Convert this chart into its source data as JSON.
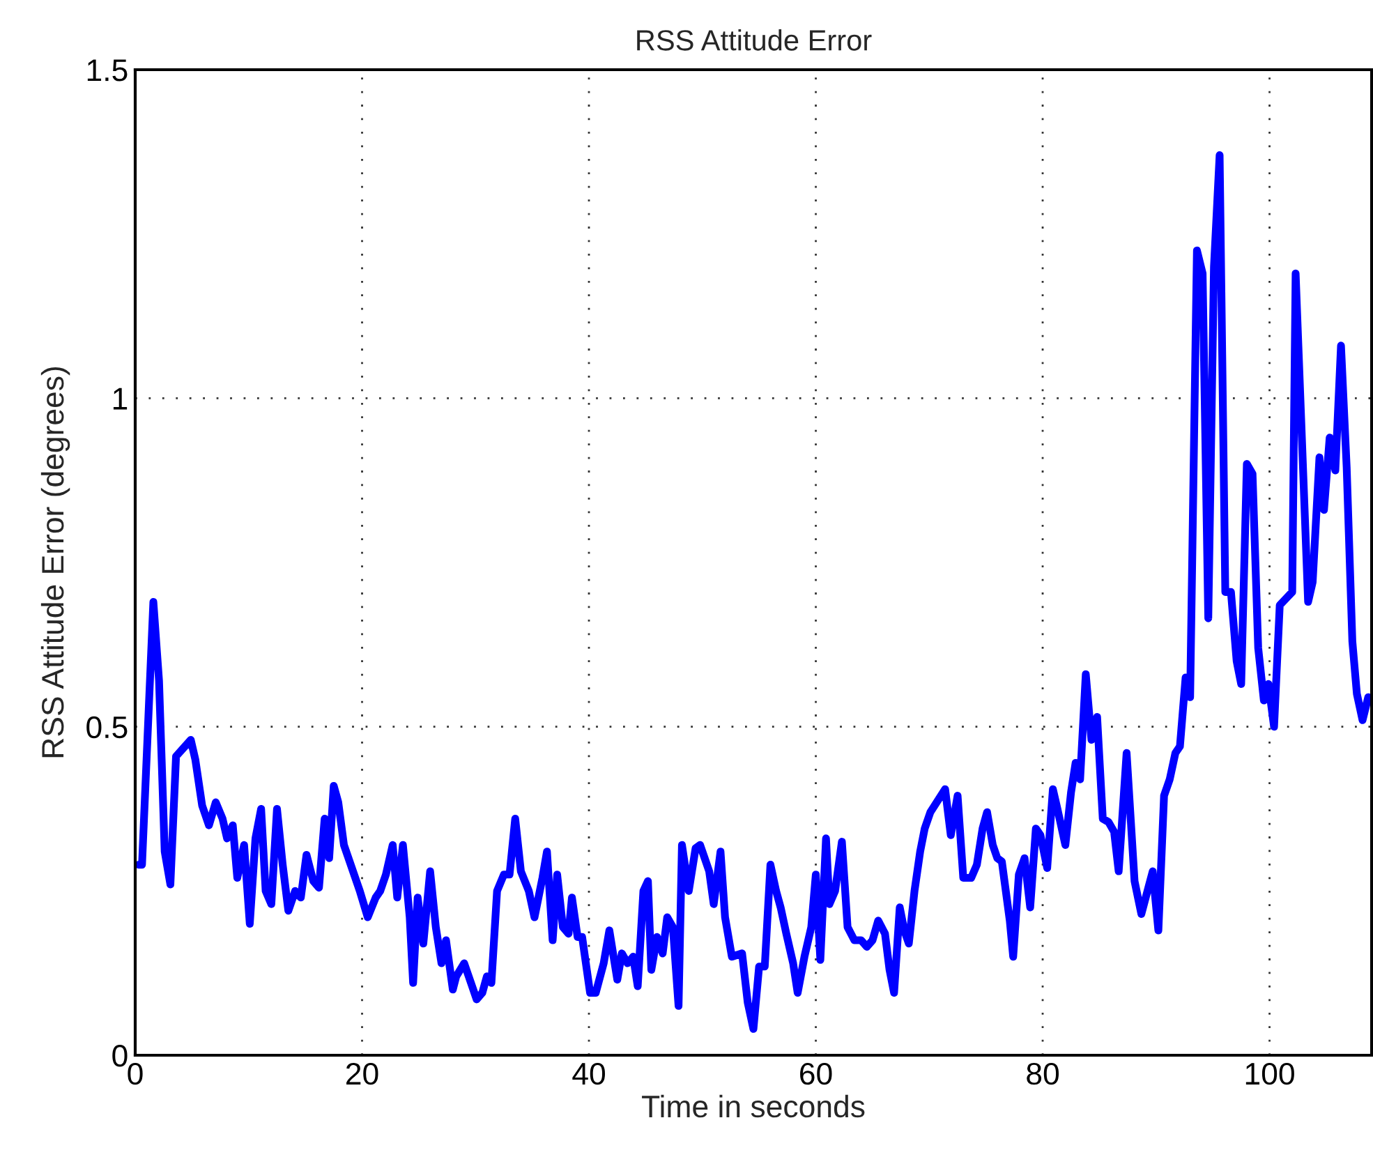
{
  "chart_data": {
    "type": "line",
    "title": "RSS Attitude Error",
    "xlabel": "Time in seconds",
    "ylabel": "RSS Attitude Error (degrees)",
    "xlim": [
      0,
      109
    ],
    "xticks": [
      0,
      20,
      40,
      60,
      80,
      100
    ],
    "ylim": [
      0,
      1.5
    ],
    "yticks": [
      0,
      0.5,
      1,
      1.5
    ],
    "grid": true,
    "line_style": "solid",
    "series": [
      {
        "color": "#0000ff",
        "x": [
          0.3,
          0.6,
          1.6,
          2.1,
          2.6,
          3.1,
          3.6,
          4.9,
          5.3,
          5.9,
          6.5,
          7.1,
          7.7,
          8.1,
          8.6,
          9.0,
          9.6,
          10.1,
          10.6,
          11.1,
          11.5,
          12.0,
          12.5,
          13.0,
          13.5,
          14.1,
          14.6,
          15.1,
          15.7,
          16.2,
          16.7,
          17.1,
          17.5,
          17.9,
          18.4,
          19.0,
          19.8,
          20.5,
          21.2,
          21.6,
          22.1,
          22.7,
          23.1,
          23.6,
          24.2,
          24.5,
          24.9,
          25.4,
          26.0,
          26.5,
          27.0,
          27.4,
          28.0,
          28.3,
          29.0,
          29.6,
          30.1,
          30.6,
          31.0,
          31.4,
          31.9,
          32.5,
          33.0,
          33.5,
          34.0,
          34.7,
          35.2,
          35.9,
          36.3,
          36.8,
          37.2,
          37.7,
          38.2,
          38.5,
          39.0,
          39.4,
          40.1,
          40.6,
          41.3,
          41.8,
          42.5,
          42.9,
          43.4,
          43.9,
          44.3,
          44.8,
          45.2,
          45.5,
          46.0,
          46.5,
          46.9,
          47.4,
          47.9,
          48.2,
          48.8,
          49.4,
          49.8,
          50.6,
          51.0,
          51.6,
          52.0,
          52.6,
          53.5,
          54.0,
          54.5,
          55.0,
          55.5,
          56.0,
          56.5,
          56.9,
          57.4,
          58.0,
          58.4,
          59.0,
          59.6,
          60.0,
          60.4,
          60.9,
          61.2,
          61.7,
          62.3,
          62.8,
          63.4,
          64.0,
          64.5,
          65.0,
          65.5,
          66.1,
          66.5,
          66.9,
          67.4,
          67.8,
          68.2,
          68.7,
          69.2,
          69.6,
          70.1,
          71.4,
          71.9,
          72.5,
          73.0,
          73.7,
          74.2,
          74.7,
          75.1,
          75.6,
          76.0,
          76.4,
          77.1,
          77.4,
          77.9,
          78.4,
          78.9,
          79.4,
          79.8,
          80.4,
          80.9,
          81.3,
          82.0,
          82.5,
          82.9,
          83.3,
          83.8,
          84.3,
          84.8,
          85.3,
          85.8,
          86.3,
          86.7,
          87.4,
          88.1,
          88.7,
          89.7,
          90.2,
          90.7,
          91.2,
          91.7,
          92.1,
          92.6,
          93.0,
          93.6,
          94.1,
          94.6,
          95.1,
          95.6,
          96.1,
          96.6,
          97.1,
          97.5,
          98.0,
          98.5,
          99.0,
          99.5,
          99.9,
          100.4,
          100.9,
          102.0,
          102.3,
          103.4,
          103.8,
          104.4,
          104.8,
          105.3,
          105.8,
          106.3,
          106.8,
          107.3,
          107.7,
          108.2,
          108.7
        ],
        "values": [
          0.29,
          0.29,
          0.69,
          0.57,
          0.31,
          0.26,
          0.455,
          0.48,
          0.45,
          0.38,
          0.35,
          0.385,
          0.36,
          0.33,
          0.35,
          0.27,
          0.32,
          0.2,
          0.33,
          0.375,
          0.25,
          0.23,
          0.375,
          0.29,
          0.22,
          0.25,
          0.24,
          0.305,
          0.265,
          0.255,
          0.36,
          0.3,
          0.41,
          0.385,
          0.32,
          0.29,
          0.25,
          0.21,
          0.24,
          0.25,
          0.275,
          0.32,
          0.24,
          0.32,
          0.21,
          0.11,
          0.24,
          0.17,
          0.28,
          0.195,
          0.14,
          0.175,
          0.1,
          0.12,
          0.14,
          0.11,
          0.085,
          0.095,
          0.12,
          0.11,
          0.25,
          0.275,
          0.275,
          0.36,
          0.28,
          0.25,
          0.21,
          0.27,
          0.31,
          0.175,
          0.275,
          0.195,
          0.185,
          0.24,
          0.18,
          0.18,
          0.095,
          0.095,
          0.14,
          0.19,
          0.115,
          0.155,
          0.14,
          0.15,
          0.105,
          0.25,
          0.265,
          0.13,
          0.18,
          0.155,
          0.21,
          0.195,
          0.075,
          0.32,
          0.25,
          0.315,
          0.32,
          0.28,
          0.23,
          0.31,
          0.21,
          0.15,
          0.155,
          0.08,
          0.04,
          0.135,
          0.135,
          0.29,
          0.25,
          0.225,
          0.185,
          0.14,
          0.095,
          0.15,
          0.195,
          0.275,
          0.145,
          0.33,
          0.23,
          0.25,
          0.325,
          0.195,
          0.175,
          0.175,
          0.165,
          0.175,
          0.205,
          0.185,
          0.13,
          0.095,
          0.225,
          0.19,
          0.17,
          0.25,
          0.31,
          0.345,
          0.37,
          0.405,
          0.335,
          0.395,
          0.27,
          0.27,
          0.29,
          0.345,
          0.37,
          0.32,
          0.3,
          0.295,
          0.205,
          0.15,
          0.275,
          0.3,
          0.225,
          0.345,
          0.335,
          0.285,
          0.405,
          0.375,
          0.32,
          0.4,
          0.445,
          0.42,
          0.58,
          0.48,
          0.515,
          0.36,
          0.355,
          0.34,
          0.28,
          0.46,
          0.265,
          0.215,
          0.28,
          0.19,
          0.395,
          0.42,
          0.46,
          0.47,
          0.575,
          0.545,
          1.225,
          1.19,
          0.665,
          1.2,
          1.37,
          0.705,
          0.705,
          0.6,
          0.565,
          0.9,
          0.885,
          0.62,
          0.54,
          0.565,
          0.5,
          0.685,
          0.705,
          1.19,
          0.69,
          0.72,
          0.91,
          0.83,
          0.94,
          0.89,
          1.08,
          0.895,
          0.63,
          0.55,
          0.51,
          0.545
        ]
      }
    ]
  }
}
